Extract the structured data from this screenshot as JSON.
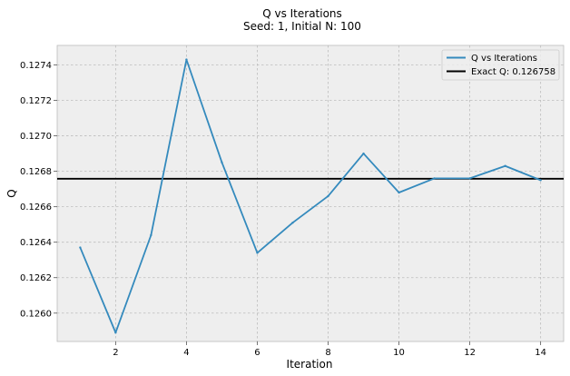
{
  "chart_data": {
    "type": "line",
    "title": "Q vs Iterations",
    "subtitle": "Seed: 1, Initial N: 100",
    "xlabel": "Iteration",
    "ylabel": "Q",
    "xlim": [
      0.35,
      14.65
    ],
    "ylim": [
      0.12584,
      0.12751
    ],
    "xticks": [
      2,
      4,
      6,
      8,
      10,
      12,
      14
    ],
    "xtick_labels": [
      "2",
      "4",
      "6",
      "8",
      "10",
      "12",
      "14"
    ],
    "yticks": [
      0.126,
      0.1262,
      0.1264,
      0.1266,
      0.1268,
      0.127,
      0.1272,
      0.1274
    ],
    "ytick_labels": [
      "0.1260",
      "0.1262",
      "0.1264",
      "0.1266",
      "0.1268",
      "0.1270",
      "0.1272",
      "0.1274"
    ],
    "grid": true,
    "legend_position": "top-right",
    "series": [
      {
        "name": "Q vs Iterations",
        "color": "#348ABD",
        "x": [
          1,
          2,
          3,
          4,
          5,
          6,
          7,
          8,
          9,
          10,
          11,
          12,
          13,
          14
        ],
        "values": [
          0.12637,
          0.12589,
          0.12644,
          0.12743,
          0.12685,
          0.12634,
          0.12651,
          0.12666,
          0.1269,
          0.12668,
          0.12676,
          0.12676,
          0.12683,
          0.12675
        ]
      }
    ],
    "reference_lines": [
      {
        "name": "Exact Q: 0.126758",
        "y": 0.126758,
        "color": "#000000"
      }
    ]
  }
}
